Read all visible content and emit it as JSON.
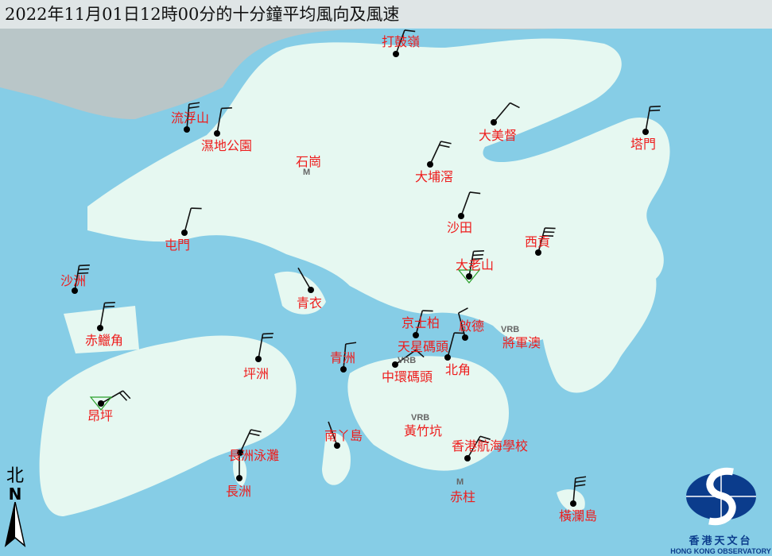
{
  "title": "2022年11月01日12時00分的十分鐘平均風向及風速",
  "colors": {
    "sea": "#86cde6",
    "land": "#e6f8f1",
    "label": "#ee1c1c",
    "barb": "#111111",
    "logo": "#0b3c8c",
    "triangle": "#2aa02a"
  },
  "markers": {
    "vrb": "VRB",
    "m": "M"
  },
  "stations": [
    {
      "name": "打鼓嶺",
      "marker": "dot",
      "wind_dir_deg": 20,
      "barbs": 1
    },
    {
      "name": "流浮山",
      "marker": "dot",
      "wind_dir_deg": 5,
      "barbs": 2
    },
    {
      "name": "濕地公園",
      "marker": "dot",
      "wind_dir_deg": 10,
      "barbs": 1
    },
    {
      "name": "石崗",
      "marker": "M"
    },
    {
      "name": "大美督",
      "marker": "dot",
      "wind_dir_deg": 40,
      "barbs": 1
    },
    {
      "name": "塔門",
      "marker": "dot",
      "wind_dir_deg": 10,
      "barbs": 2
    },
    {
      "name": "大埔滘",
      "marker": "dot",
      "wind_dir_deg": 25,
      "barbs": 2
    },
    {
      "name": "沙田",
      "marker": "dot",
      "wind_dir_deg": 20,
      "barbs": 1
    },
    {
      "name": "屯門",
      "marker": "dot",
      "wind_dir_deg": 15,
      "barbs": 1
    },
    {
      "name": "西貢",
      "marker": "dot",
      "wind_dir_deg": 15,
      "barbs": 3
    },
    {
      "name": "大老山",
      "marker": "triangle",
      "wind_dir_deg": 10,
      "barbs": 3
    },
    {
      "name": "沙洲",
      "marker": "dot",
      "wind_dir_deg": 10,
      "barbs": 3
    },
    {
      "name": "青衣",
      "marker": "dot",
      "wind_dir_deg": 330,
      "barbs": 0
    },
    {
      "name": "赤鱲角",
      "marker": "dot",
      "wind_dir_deg": 10,
      "barbs": 2
    },
    {
      "name": "京士柏",
      "marker": "dot",
      "wind_dir_deg": 15,
      "barbs": 1
    },
    {
      "name": "啟德",
      "marker": "dot",
      "wind_dir_deg": 345,
      "barbs": 1
    },
    {
      "name": "將軍澳",
      "marker": "VRB"
    },
    {
      "name": "天星碼頭",
      "marker": "VRB"
    },
    {
      "name": "北角",
      "marker": "dot",
      "wind_dir_deg": 15,
      "barbs": 1
    },
    {
      "name": "坪洲",
      "marker": "dot",
      "wind_dir_deg": 10,
      "barbs": 2
    },
    {
      "name": "青洲",
      "marker": "dot",
      "wind_dir_deg": 5,
      "barbs": 1
    },
    {
      "name": "中環碼頭",
      "marker": "dot",
      "wind_dir_deg": 55,
      "barbs": 1
    },
    {
      "name": "昂坪",
      "marker": "triangle",
      "wind_dir_deg": 60,
      "barbs": 2
    },
    {
      "name": "南丫島",
      "marker": "dot",
      "wind_dir_deg": 340,
      "barbs": 0
    },
    {
      "name": "黃竹坑",
      "marker": "VRB"
    },
    {
      "name": "長洲泳灘",
      "marker": "dot",
      "wind_dir_deg": 25,
      "barbs": 2
    },
    {
      "name": "長洲",
      "marker": "dot",
      "wind_dir_deg": 0,
      "barbs": 0
    },
    {
      "name": "香港航海學校",
      "marker": "dot",
      "wind_dir_deg": 30,
      "barbs": 2
    },
    {
      "name": "赤柱",
      "marker": "M"
    },
    {
      "name": "橫瀾島",
      "marker": "dot",
      "wind_dir_deg": 5,
      "barbs": 3
    }
  ],
  "north": {
    "zh": "北",
    "en": "N"
  },
  "logo": {
    "zh": "香港天文台",
    "en": "HONG KONG OBSERVATORY"
  }
}
